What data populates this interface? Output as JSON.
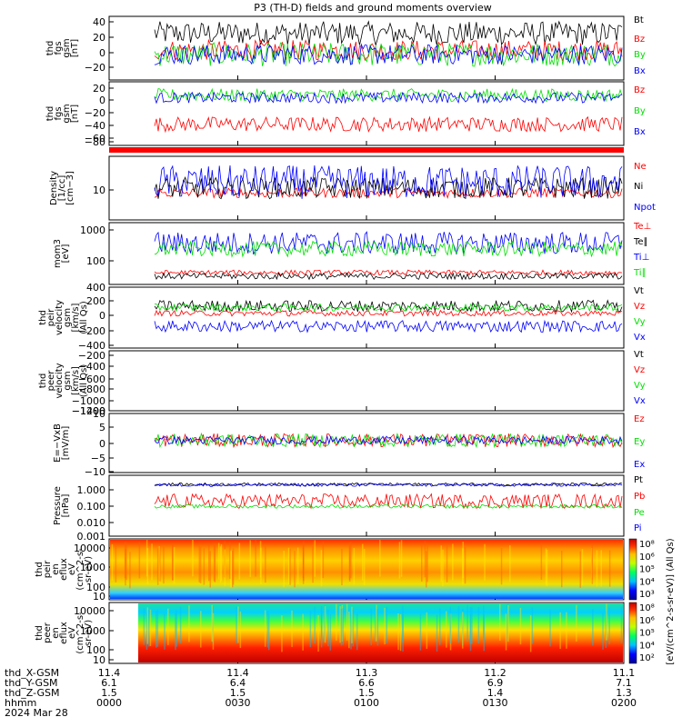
{
  "title": "P3 (TH-D) fields and ground moments overview",
  "colors": {
    "black": "#000000",
    "red": "#ff0000",
    "green": "#00e000",
    "blue": "#0000ff"
  },
  "chart_data": [
    {
      "id": "fgs",
      "type": "line",
      "ylabel": [
        "thd",
        "fgs",
        "gsm",
        "[nT]"
      ],
      "yticks": [
        "40",
        "20",
        "0",
        "−20"
      ],
      "ylim": [
        -30,
        45
      ],
      "series": [
        {
          "name": "Bt",
          "color": "black",
          "base": 25,
          "amp": 14
        },
        {
          "name": "Bz",
          "color": "red",
          "base": 5,
          "amp": 12
        },
        {
          "name": "By",
          "color": "green",
          "base": 0,
          "amp": 14
        },
        {
          "name": "Bx",
          "color": "blue",
          "base": 0,
          "amp": 12
        }
      ]
    },
    {
      "id": "fgl",
      "type": "line",
      "ylabel": [
        "thd",
        "fgs",
        "gsm",
        "[nT]"
      ],
      "yticks": [
        "20",
        "0",
        "−20",
        "−40",
        "−60",
        "−80"
      ],
      "ylim": [
        -90,
        30
      ],
      "series": [
        {
          "name": "Bz",
          "color": "red",
          "base": -50,
          "amp": 14
        },
        {
          "name": "By",
          "color": "green",
          "base": 5,
          "amp": 12
        },
        {
          "name": "Bx",
          "color": "blue",
          "base": 0,
          "amp": 10
        }
      ]
    },
    {
      "id": "density",
      "type": "line",
      "log": true,
      "ylabel": [
        "Density",
        "[1/cc]",
        "[cm−3]"
      ],
      "yticks": [
        "10"
      ],
      "ylim": [
        3,
        40
      ],
      "series": [
        {
          "name": "Ne",
          "color": "red",
          "base": 9,
          "amp": 1.5
        },
        {
          "name": "Ni",
          "color": "black",
          "base": 11,
          "amp": 4
        },
        {
          "name": "Npot",
          "color": "blue",
          "base": 14,
          "amp": 8
        }
      ]
    },
    {
      "id": "temp",
      "type": "line",
      "log": true,
      "ylabel": [
        "mom3",
        "[eV]"
      ],
      "yticks": [
        "1000",
        "100"
      ],
      "ylim": [
        40,
        1500
      ],
      "series": [
        {
          "name": "Te⊥",
          "color": "red",
          "base": 80,
          "amp": 10
        },
        {
          "name": "Te∥",
          "color": "black",
          "base": 65,
          "amp": 10
        },
        {
          "name": "Ti⊥",
          "color": "blue",
          "base": 450,
          "amp": 250
        },
        {
          "name": "Ti∥",
          "color": "green",
          "base": 320,
          "amp": 120
        }
      ]
    },
    {
      "id": "vel",
      "type": "line",
      "ylabel": [
        "thd",
        "peir",
        "velocity",
        "gsm",
        "[km/s]",
        "(All Qs)"
      ],
      "yticks": [
        "400",
        "200",
        "0",
        "−200",
        "−400"
      ],
      "ylim": [
        -420,
        420
      ],
      "series": [
        {
          "name": "Vt",
          "color": "black",
          "base": 160,
          "amp": 80
        },
        {
          "name": "Vz",
          "color": "red",
          "base": 60,
          "amp": 40
        },
        {
          "name": "Vy",
          "color": "green",
          "base": 140,
          "amp": 50
        },
        {
          "name": "Vx",
          "color": "blue",
          "base": -120,
          "amp": 80
        }
      ]
    },
    {
      "id": "vele",
      "type": "line",
      "ylabel": [
        "thd",
        "peer",
        "velocity",
        "gsm",
        "[km/s]",
        "(All Qs)"
      ],
      "yticks": [
        "−200",
        "−400",
        "−600",
        "−800",
        "−1000",
        "−1200",
        "−1400"
      ],
      "ylim": [
        -1500,
        -150
      ],
      "series": [
        {
          "name": "Vt",
          "color": "black"
        },
        {
          "name": "Vz",
          "color": "red"
        },
        {
          "name": "Vy",
          "color": "green"
        },
        {
          "name": "Vx",
          "color": "blue"
        }
      ]
    },
    {
      "id": "efield",
      "type": "line",
      "ylabel": [
        "E=−VxB",
        "[mV/m]"
      ],
      "yticks": [
        "10",
        "5",
        "0",
        "−5",
        "−10"
      ],
      "ylim": [
        -12,
        10
      ],
      "series": [
        {
          "name": "Ez",
          "color": "red",
          "base": 0,
          "amp": 2.5
        },
        {
          "name": "Ey",
          "color": "green",
          "base": 0,
          "amp": 2.5
        },
        {
          "name": "Ex",
          "color": "blue",
          "base": 0,
          "amp": 1.5
        }
      ]
    },
    {
      "id": "pressure",
      "type": "line",
      "log": true,
      "ylabel": [
        "Pressure",
        "[nPa]"
      ],
      "yticks": [
        "1.000",
        "0.100",
        "0.010",
        "0.001"
      ],
      "ylim": [
        0.001,
        3
      ],
      "series": [
        {
          "name": "Pt",
          "color": "black",
          "base": 0.9,
          "amp": 0.15
        },
        {
          "name": "Pb",
          "color": "red",
          "base": 0.1,
          "amp": 0.08
        },
        {
          "name": "Pe",
          "color": "green",
          "base": 0.05,
          "amp": 0.01
        },
        {
          "name": "Pi",
          "color": "blue",
          "base": 0.85,
          "amp": 0.15
        }
      ]
    },
    {
      "id": "ion_spec",
      "type": "heatmap",
      "ylabel": [
        "thd",
        "peir",
        "en",
        "eflux",
        "eV",
        "(cm^2-s-",
        "sr-eV)"
      ],
      "yticks": [
        "10000",
        "1000",
        "100",
        "10"
      ]
    },
    {
      "id": "ele_spec",
      "type": "heatmap",
      "ylabel": [
        "thd",
        "peer",
        "en",
        "eflux",
        "eV",
        "(cm^2-s-",
        "sr-eV)"
      ],
      "yticks": [
        "10000",
        "1000",
        "100",
        "10"
      ]
    }
  ],
  "colorbars": [
    {
      "ticks": [
        "10⁸",
        "10⁶",
        "10⁵",
        "10⁴",
        "10³"
      ],
      "label": "[eV/(cm^2-s-sr-eV)] (All Qs)"
    },
    {
      "ticks": [
        "10⁸",
        "10⁶",
        "10⁵",
        "10⁴",
        "10²"
      ],
      "label": "[eV/(cm^2-s-sr-eV)] (All Qs)"
    }
  ],
  "xaxis": {
    "row_labels": [
      "thd_X-GSM",
      "thd_Y-GSM",
      "thd_Z-GSM",
      "hhmm",
      "2024 Mar 28"
    ],
    "columns": [
      [
        "11.4",
        "6.1",
        "1.5",
        "0000"
      ],
      [
        "11.4",
        "6.4",
        "1.5",
        "0030"
      ],
      [
        "11.3",
        "6.6",
        "1.5",
        "0100"
      ],
      [
        "11.2",
        "6.9",
        "1.4",
        "0130"
      ],
      [
        "11.1",
        "7.1",
        "1.3",
        "0200"
      ]
    ]
  }
}
